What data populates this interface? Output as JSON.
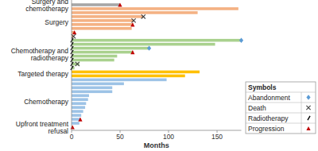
{
  "chart_data": {
    "type": "swimmer",
    "orientation": "horizontal",
    "x_label": "Months",
    "xlim": [
      0,
      175
    ],
    "xticks": [
      0,
      50,
      100,
      150
    ],
    "series": [
      {
        "name": "Surgery and chemotherapy",
        "color": "#a6a6a6",
        "values": [
          50
        ],
        "events": [
          {
            "row": 0,
            "symbol": "Progression",
            "value": 50
          }
        ]
      },
      {
        "name": "Surgery",
        "color": "#f4b183",
        "values": [
          172,
          130,
          74,
          64,
          63,
          62,
          3,
          2
        ],
        "events": [
          {
            "row": 2,
            "symbol": "Death",
            "value": 74
          },
          {
            "row": 3,
            "symbol": "Death",
            "value": 64
          },
          {
            "row": 4,
            "symbol": "Progression",
            "value": 63
          },
          {
            "row": 6,
            "symbol": "Progression",
            "value": 3
          },
          {
            "row": 7,
            "symbol": "Death",
            "value": 2
          }
        ]
      },
      {
        "name": "Chemotherapy and radiotherapy",
        "color": "#a9d18e",
        "values": [
          175,
          148,
          80,
          63,
          47,
          44,
          8,
          3
        ],
        "events": [
          {
            "row": 0,
            "symbol": "Radiotherapy",
            "value": 0
          },
          {
            "row": 1,
            "symbol": "Radiotherapy",
            "value": 0
          },
          {
            "row": 2,
            "symbol": "Radiotherapy",
            "value": 0
          },
          {
            "row": 3,
            "symbol": "Radiotherapy",
            "value": 0
          },
          {
            "row": 4,
            "symbol": "Radiotherapy",
            "value": 0
          },
          {
            "row": 5,
            "symbol": "Radiotherapy",
            "value": 0
          },
          {
            "row": 6,
            "symbol": "Radiotherapy",
            "value": 0
          },
          {
            "row": 7,
            "symbol": "Radiotherapy",
            "value": 0
          },
          {
            "row": 0,
            "symbol": "Abandonment",
            "value": 175
          },
          {
            "row": 2,
            "symbol": "Abandonment",
            "value": 80
          },
          {
            "row": 3,
            "symbol": "Progression",
            "value": 63
          },
          {
            "row": 6,
            "symbol": "Death",
            "value": 6
          }
        ]
      },
      {
        "name": "Targeted therapy",
        "color": "#ffc000",
        "values": [
          132,
          117
        ],
        "events": []
      },
      {
        "name": "Chemotherapy",
        "color": "#9dc3e6",
        "values": [
          98,
          54,
          42,
          42,
          18,
          17,
          15,
          14,
          12,
          10,
          9,
          8
        ],
        "events": [
          {
            "row": 10,
            "symbol": "Progression",
            "value": 9
          }
        ]
      },
      {
        "name": "Upfront treatment refusal",
        "color": "#f4b183",
        "values": [
          1
        ],
        "events": [
          {
            "row": 0,
            "symbol": "Progression",
            "value": 1
          }
        ]
      }
    ],
    "legend_title": "Symbols",
    "symbols": [
      {
        "name": "Abandonment",
        "marker": "diamond",
        "color": "#5b9bd5"
      },
      {
        "name": "Death",
        "marker": "x",
        "color": "#404040"
      },
      {
        "name": "Radiotherapy",
        "marker": "slash",
        "color": "#000000"
      },
      {
        "name": "Progression",
        "marker": "triangle",
        "color": "#c00000"
      }
    ]
  }
}
